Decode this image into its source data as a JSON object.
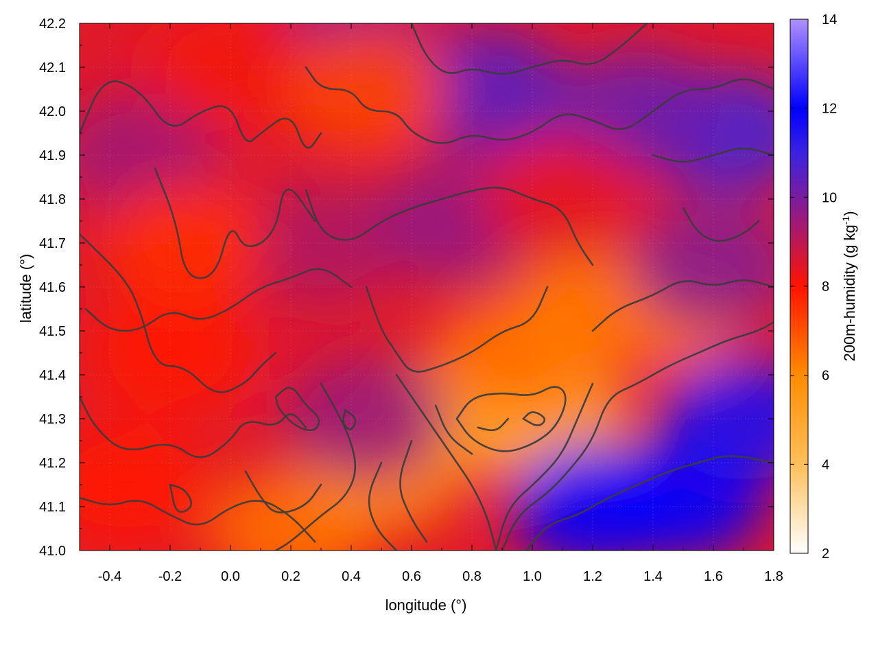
{
  "chart_data": {
    "type": "heatmap",
    "xlabel": "longitude (°)",
    "ylabel": "latitude (°)",
    "colorbar_label": "200m-humidity (g kg-1)",
    "colorbar_label_parts": {
      "main": "200m-humidity (g kg",
      "superscript": "-1",
      "close": ")"
    },
    "xlim": [
      -0.5,
      1.8
    ],
    "ylim": [
      41.0,
      42.2
    ],
    "zlim": [
      2,
      14
    ],
    "x_ticks": [
      -0.4,
      -0.2,
      0.0,
      0.2,
      0.4,
      0.6,
      0.8,
      1.0,
      1.2,
      1.4,
      1.6,
      1.8
    ],
    "x_tick_labels": [
      "-0.4",
      "-0.2",
      "0.0",
      "0.2",
      "0.4",
      "0.6",
      "0.8",
      "1.0",
      "1.2",
      "1.4",
      "1.6",
      "1.8"
    ],
    "y_ticks": [
      41.0,
      41.1,
      41.2,
      41.3,
      41.4,
      41.5,
      41.6,
      41.7,
      41.8,
      41.9,
      42.0,
      42.1,
      42.2
    ],
    "y_tick_labels": [
      "41.0",
      "41.1",
      "41.2",
      "41.3",
      "41.4",
      "41.5",
      "41.6",
      "41.7",
      "41.8",
      "41.9",
      "42.0",
      "42.1",
      "42.2"
    ],
    "colorbar_ticks": [
      2,
      4,
      6,
      8,
      10,
      12,
      14
    ],
    "colorbar_tick_labels": [
      "2",
      "4",
      "6",
      "8",
      "10",
      "12",
      "14"
    ],
    "colormap": [
      {
        "value": 2,
        "color": "#ffffff"
      },
      {
        "value": 4,
        "color": "#ffbf5a"
      },
      {
        "value": 6,
        "color": "#ff8c00"
      },
      {
        "value": 8,
        "color": "#ff1400"
      },
      {
        "value": 9.5,
        "color": "#9a1a7c"
      },
      {
        "value": 11,
        "color": "#3a22e0"
      },
      {
        "value": 12,
        "color": "#0000ff"
      },
      {
        "value": 14,
        "color": "#b090ff"
      }
    ],
    "grid": true,
    "field_regions": [
      {
        "lon": 0.85,
        "lat": 41.32,
        "value": 5.5
      },
      {
        "lon": 1.05,
        "lat": 41.3,
        "value": 5.0
      },
      {
        "lon": 0.72,
        "lat": 41.3,
        "value": 5.2
      },
      {
        "lon": 0.95,
        "lat": 41.45,
        "value": 6.5
      },
      {
        "lon": 1.2,
        "lat": 41.55,
        "value": 6.3
      },
      {
        "lon": 1.45,
        "lat": 41.55,
        "value": 6.5
      },
      {
        "lon": 0.2,
        "lat": 41.05,
        "value": 6.5
      },
      {
        "lon": 0.5,
        "lat": 41.18,
        "value": 6.0
      },
      {
        "lon": 1.5,
        "lat": 41.12,
        "value": 12.0
      },
      {
        "lon": 1.7,
        "lat": 41.3,
        "value": 11.5
      },
      {
        "lon": 1.2,
        "lat": 41.1,
        "value": 12.0
      },
      {
        "lon": 1.65,
        "lat": 41.95,
        "value": 10.8
      },
      {
        "lon": 1.35,
        "lat": 42.0,
        "value": 10.2
      },
      {
        "lon": 0.85,
        "lat": 42.05,
        "value": 10.5
      },
      {
        "lon": 0.4,
        "lat": 42.15,
        "value": 9.8
      },
      {
        "lon": -0.3,
        "lat": 41.9,
        "value": 9.4
      },
      {
        "lon": 0.3,
        "lat": 41.7,
        "value": 9.2
      },
      {
        "lon": 0.75,
        "lat": 41.75,
        "value": 9.6
      },
      {
        "lon": -0.2,
        "lat": 41.45,
        "value": 8.0
      },
      {
        "lon": -0.35,
        "lat": 41.15,
        "value": 8.0
      },
      {
        "lon": 0.0,
        "lat": 42.1,
        "value": 8.2
      },
      {
        "lon": 0.45,
        "lat": 42.05,
        "value": 7.2
      },
      {
        "lon": 0.45,
        "lat": 41.3,
        "value": 9.5
      },
      {
        "lon": 1.1,
        "lat": 41.8,
        "value": 8.4
      },
      {
        "lon": 1.6,
        "lat": 41.65,
        "value": 9.8
      },
      {
        "lon": -0.15,
        "lat": 41.7,
        "value": 7.6
      }
    ],
    "contours": [
      [
        [
          -0.5,
          41.95
        ],
        [
          -0.42,
          42.08
        ],
        [
          -0.3,
          42.05
        ],
        [
          -0.2,
          41.95
        ],
        [
          -0.1,
          42.0
        ],
        [
          0.0,
          42.02
        ],
        [
          0.05,
          41.92
        ],
        [
          0.1,
          41.95
        ],
        [
          0.2,
          42.0
        ],
        [
          0.25,
          41.9
        ],
        [
          0.3,
          41.95
        ]
      ],
      [
        [
          -0.25,
          41.87
        ],
        [
          -0.18,
          41.75
        ],
        [
          -0.15,
          41.62
        ],
        [
          -0.05,
          41.62
        ],
        [
          0.0,
          41.75
        ],
        [
          0.05,
          41.68
        ],
        [
          0.15,
          41.72
        ],
        [
          0.18,
          41.85
        ],
        [
          0.28,
          41.75
        ]
      ],
      [
        [
          -0.5,
          41.72
        ],
        [
          -0.35,
          41.62
        ],
        [
          -0.3,
          41.55
        ],
        [
          -0.25,
          41.42
        ],
        [
          -0.15,
          41.42
        ],
        [
          -0.05,
          41.35
        ],
        [
          0.05,
          41.38
        ],
        [
          0.1,
          41.42
        ],
        [
          0.15,
          41.45
        ]
      ],
      [
        [
          -0.5,
          41.35
        ],
        [
          -0.45,
          41.28
        ],
        [
          -0.35,
          41.22
        ],
        [
          -0.2,
          41.25
        ],
        [
          -0.1,
          41.2
        ],
        [
          0.0,
          41.25
        ],
        [
          0.05,
          41.3
        ],
        [
          0.15,
          41.28
        ],
        [
          0.2,
          41.32
        ],
        [
          0.25,
          41.28
        ]
      ],
      [
        [
          -0.5,
          41.12
        ],
        [
          -0.4,
          41.1
        ],
        [
          -0.3,
          41.12
        ],
        [
          -0.2,
          41.08
        ],
        [
          -0.1,
          41.05
        ],
        [
          0.0,
          41.1
        ],
        [
          0.1,
          41.12
        ],
        [
          0.2,
          41.08
        ],
        [
          0.28,
          41.02
        ]
      ],
      [
        [
          0.15,
          41.35
        ],
        [
          0.2,
          41.38
        ],
        [
          0.25,
          41.33
        ],
        [
          0.3,
          41.3
        ],
        [
          0.28,
          41.27
        ],
        [
          0.22,
          41.28
        ],
        [
          0.16,
          41.32
        ],
        [
          0.15,
          41.35
        ]
      ],
      [
        [
          0.5,
          41.2
        ],
        [
          0.45,
          41.12
        ],
        [
          0.48,
          41.05
        ],
        [
          0.55,
          41.0
        ]
      ],
      [
        [
          0.6,
          41.25
        ],
        [
          0.55,
          41.15
        ],
        [
          0.6,
          41.07
        ],
        [
          0.65,
          41.02
        ]
      ],
      [
        [
          0.75,
          41.3
        ],
        [
          0.8,
          41.25
        ],
        [
          0.9,
          41.22
        ],
        [
          1.0,
          41.24
        ],
        [
          1.08,
          41.28
        ],
        [
          1.12,
          41.35
        ],
        [
          1.08,
          41.38
        ],
        [
          1.0,
          41.35
        ],
        [
          0.9,
          41.36
        ],
        [
          0.8,
          41.35
        ],
        [
          0.75,
          41.3
        ]
      ],
      [
        [
          0.68,
          41.33
        ],
        [
          0.72,
          41.26
        ],
        [
          0.8,
          41.22
        ]
      ],
      [
        [
          0.82,
          41.28
        ],
        [
          0.88,
          41.27
        ],
        [
          0.92,
          41.3
        ]
      ],
      [
        [
          0.97,
          41.3
        ],
        [
          1.0,
          41.32
        ],
        [
          1.05,
          41.3
        ],
        [
          1.02,
          41.28
        ],
        [
          0.97,
          41.3
        ]
      ],
      [
        [
          0.9,
          41.0
        ],
        [
          0.95,
          41.08
        ],
        [
          1.05,
          41.13
        ],
        [
          1.12,
          41.18
        ],
        [
          1.2,
          41.25
        ],
        [
          1.25,
          41.35
        ],
        [
          1.35,
          41.38
        ],
        [
          1.45,
          41.42
        ],
        [
          1.55,
          41.45
        ],
        [
          1.65,
          41.48
        ],
        [
          1.75,
          41.5
        ],
        [
          1.8,
          41.52
        ]
      ],
      [
        [
          0.88,
          41.0
        ],
        [
          0.92,
          41.1
        ],
        [
          1.02,
          41.16
        ],
        [
          1.1,
          41.22
        ],
        [
          1.15,
          41.3
        ],
        [
          1.2,
          41.38
        ]
      ],
      [
        [
          0.98,
          41.0
        ],
        [
          1.05,
          41.06
        ],
        [
          1.15,
          41.08
        ],
        [
          1.25,
          41.12
        ],
        [
          1.35,
          41.15
        ],
        [
          1.45,
          41.18
        ],
        [
          1.55,
          41.2
        ],
        [
          1.65,
          41.22
        ],
        [
          1.8,
          41.2
        ]
      ],
      [
        [
          1.2,
          41.5
        ],
        [
          1.28,
          41.55
        ],
        [
          1.4,
          41.58
        ],
        [
          1.5,
          41.62
        ],
        [
          1.6,
          41.6
        ],
        [
          1.7,
          41.62
        ],
        [
          1.8,
          41.6
        ]
      ],
      [
        [
          0.25,
          41.82
        ],
        [
          0.3,
          41.72
        ],
        [
          0.4,
          41.7
        ],
        [
          0.5,
          41.75
        ],
        [
          0.6,
          41.78
        ],
        [
          0.7,
          41.8
        ],
        [
          0.8,
          41.82
        ],
        [
          0.9,
          41.83
        ],
        [
          1.0,
          41.8
        ],
        [
          1.1,
          41.78
        ],
        [
          1.15,
          41.7
        ],
        [
          1.2,
          41.65
        ]
      ],
      [
        [
          0.45,
          41.6
        ],
        [
          0.5,
          41.5
        ],
        [
          0.55,
          41.45
        ],
        [
          0.6,
          41.4
        ],
        [
          0.7,
          41.42
        ],
        [
          0.8,
          41.45
        ],
        [
          0.9,
          41.5
        ],
        [
          1.0,
          41.52
        ],
        [
          1.05,
          41.6
        ]
      ],
      [
        [
          0.25,
          42.1
        ],
        [
          0.3,
          42.05
        ],
        [
          0.4,
          42.05
        ],
        [
          0.45,
          42.0
        ],
        [
          0.55,
          42.0
        ],
        [
          0.6,
          41.95
        ],
        [
          0.7,
          41.92
        ],
        [
          0.8,
          41.95
        ],
        [
          0.9,
          41.93
        ],
        [
          1.0,
          41.95
        ],
        [
          1.1,
          42.0
        ],
        [
          1.2,
          41.98
        ],
        [
          1.3,
          41.95
        ],
        [
          1.4,
          42.0
        ],
        [
          1.5,
          42.05
        ],
        [
          1.6,
          42.05
        ],
        [
          1.7,
          42.08
        ],
        [
          1.8,
          42.05
        ]
      ],
      [
        [
          0.6,
          42.2
        ],
        [
          0.65,
          42.12
        ],
        [
          0.72,
          42.08
        ],
        [
          0.8,
          42.1
        ],
        [
          0.9,
          42.08
        ],
        [
          1.0,
          42.1
        ],
        [
          1.1,
          42.12
        ],
        [
          1.2,
          42.1
        ],
        [
          1.3,
          42.15
        ],
        [
          1.38,
          42.2
        ]
      ],
      [
        [
          1.4,
          41.9
        ],
        [
          1.5,
          41.88
        ],
        [
          1.6,
          41.9
        ],
        [
          1.7,
          41.92
        ],
        [
          1.8,
          41.9
        ]
      ],
      [
        [
          1.5,
          41.78
        ],
        [
          1.55,
          41.72
        ],
        [
          1.62,
          41.7
        ],
        [
          1.7,
          41.72
        ],
        [
          1.75,
          41.75
        ]
      ],
      [
        [
          0.3,
          41.38
        ],
        [
          0.35,
          41.32
        ],
        [
          0.4,
          41.25
        ],
        [
          0.42,
          41.18
        ],
        [
          0.38,
          41.12
        ],
        [
          0.3,
          41.08
        ],
        [
          0.2,
          41.02
        ],
        [
          0.15,
          41.0
        ]
      ],
      [
        [
          0.05,
          41.18
        ],
        [
          0.1,
          41.12
        ],
        [
          0.15,
          41.08
        ],
        [
          0.25,
          41.1
        ],
        [
          0.3,
          41.15
        ]
      ],
      [
        [
          -0.2,
          41.15
        ],
        [
          -0.18,
          41.08
        ],
        [
          -0.12,
          41.1
        ],
        [
          -0.15,
          41.14
        ],
        [
          -0.2,
          41.15
        ]
      ],
      [
        [
          0.38,
          41.32
        ],
        [
          0.42,
          41.3
        ],
        [
          0.4,
          41.27
        ],
        [
          0.37,
          41.29
        ],
        [
          0.38,
          41.32
        ]
      ],
      [
        [
          0.55,
          41.4
        ],
        [
          0.6,
          41.35
        ],
        [
          0.65,
          41.3
        ],
        [
          0.7,
          41.25
        ],
        [
          0.75,
          41.2
        ],
        [
          0.8,
          41.15
        ],
        [
          0.85,
          41.08
        ],
        [
          0.88,
          41.0
        ]
      ],
      [
        [
          -0.48,
          41.55
        ],
        [
          -0.4,
          41.5
        ],
        [
          -0.3,
          41.5
        ],
        [
          -0.2,
          41.55
        ],
        [
          -0.1,
          41.52
        ],
        [
          0.0,
          41.55
        ],
        [
          0.1,
          41.6
        ],
        [
          0.2,
          41.62
        ],
        [
          0.3,
          41.65
        ],
        [
          0.4,
          41.6
        ]
      ]
    ]
  }
}
